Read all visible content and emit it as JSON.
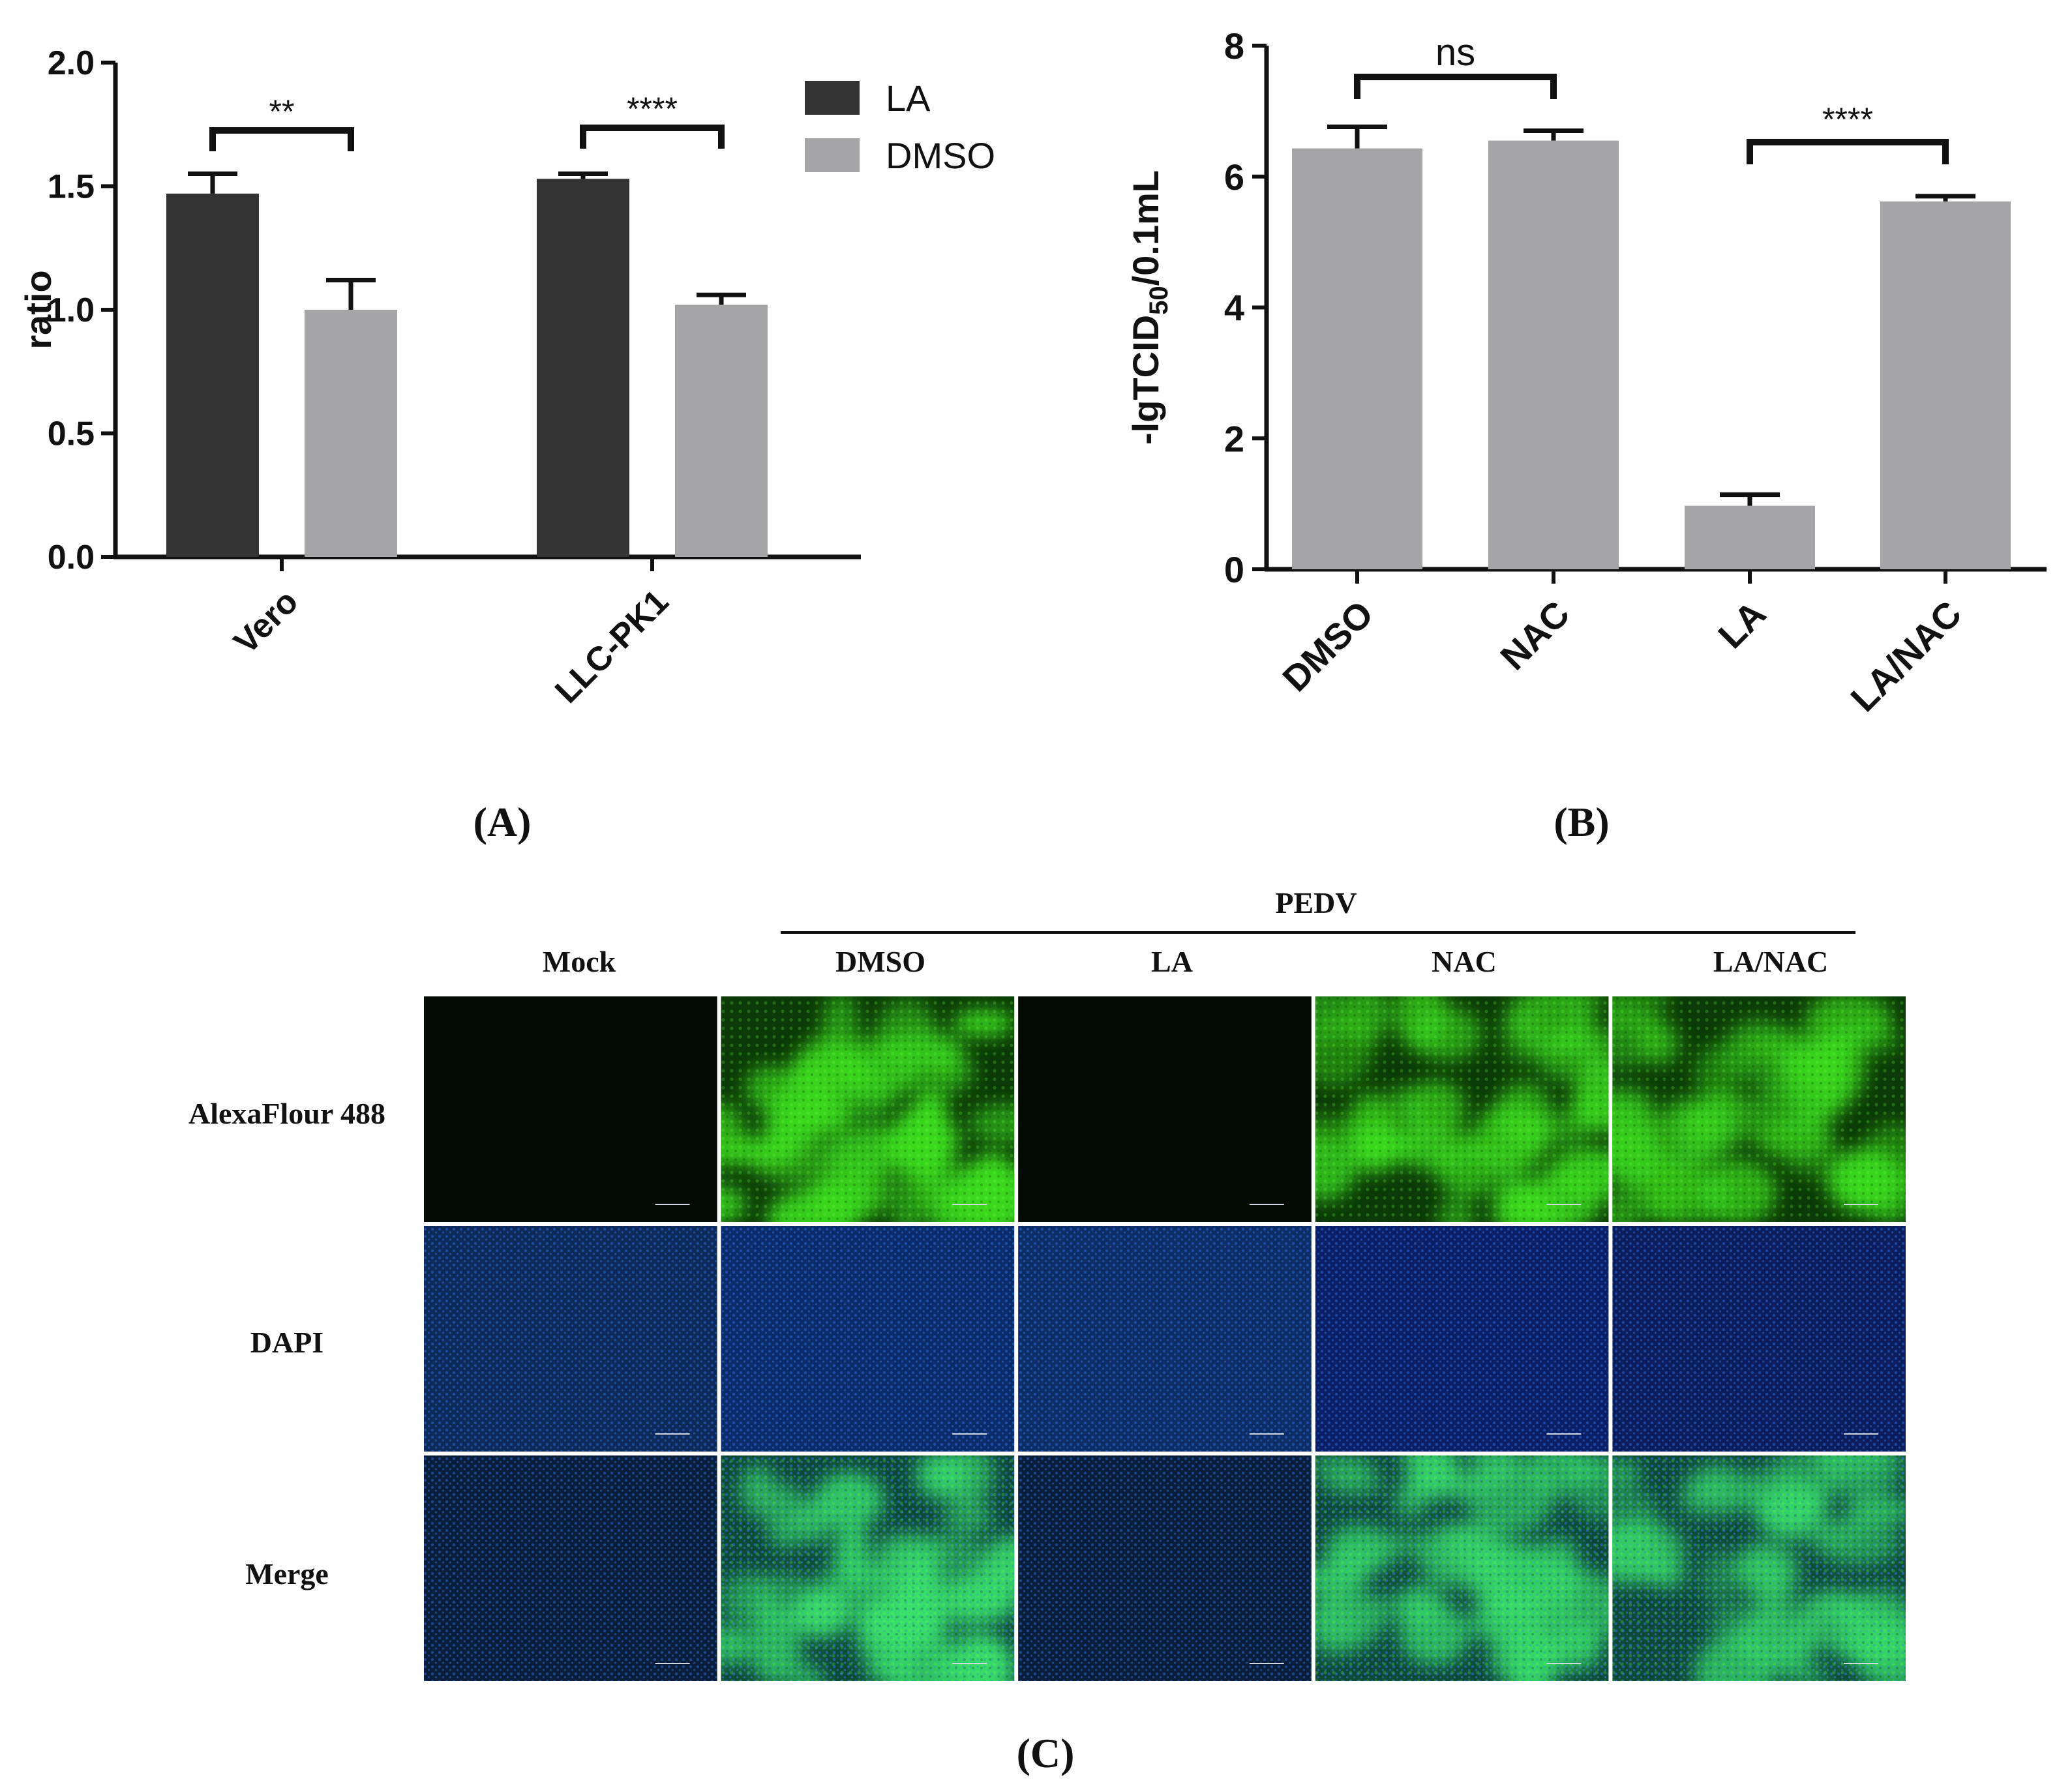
{
  "panel_labels": {
    "A": "(A)",
    "B": "(B)",
    "C": "(C)"
  },
  "colors": {
    "la": "#333333",
    "dmso": "#a5a5a8",
    "axis": "#111111",
    "green": "#2fd31a",
    "blue": "#1f55b8"
  },
  "chart_data": [
    {
      "id": "A",
      "type": "bar",
      "ylabel": "ratio",
      "xlabel": "",
      "ylim": [
        0,
        2.0
      ],
      "yticks": [
        "0.0",
        "0.5",
        "1.0",
        "1.5",
        "2.0"
      ],
      "categories": [
        "Vero",
        "LLC-PK1"
      ],
      "series": [
        {
          "name": "LA",
          "color": "#333333",
          "values": [
            1.47,
            1.53
          ],
          "errors": [
            0.08,
            0.02
          ]
        },
        {
          "name": "DMSO",
          "color": "#a5a5a8",
          "values": [
            1.0,
            1.02
          ],
          "errors": [
            0.12,
            0.04
          ]
        }
      ],
      "legend": {
        "position": "top-right",
        "entries": [
          "LA",
          "DMSO"
        ]
      },
      "significance": [
        {
          "category_index": 0,
          "label": "**"
        },
        {
          "category_index": 1,
          "label": "****"
        }
      ],
      "grid": false
    },
    {
      "id": "B",
      "type": "bar",
      "ylabel_parts": {
        "pre": "-lgTCID",
        "sub": "50",
        "post": "/0.1mL"
      },
      "xlabel": "",
      "ylim": [
        0,
        8
      ],
      "yticks": [
        "0",
        "2",
        "4",
        "6",
        "8"
      ],
      "categories": [
        "DMSO",
        "NAC",
        "LA",
        "LA/NAC"
      ],
      "series": [
        {
          "color": "#a5a5a8",
          "values": [
            6.43,
            6.55,
            0.97,
            5.62
          ],
          "errors": [
            0.33,
            0.15,
            0.17,
            0.08
          ]
        }
      ],
      "significance": [
        {
          "from": 0,
          "to": 1,
          "label": "ns"
        },
        {
          "from": 2,
          "to": 3,
          "label": "****"
        }
      ],
      "grid": false
    }
  ],
  "panel_c": {
    "group_label": "PEDV",
    "columns": [
      "Mock",
      "DMSO",
      "LA",
      "NAC",
      "LA/NAC"
    ],
    "rows": [
      "AlexaFlour 488",
      "DAPI",
      "Merge"
    ]
  }
}
